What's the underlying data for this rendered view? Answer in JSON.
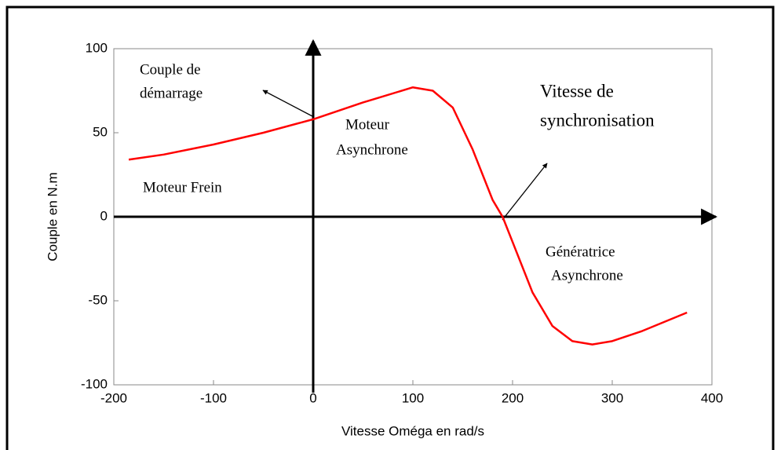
{
  "chart_data": {
    "type": "line",
    "x_label": "Vitesse Oméga en rad/s",
    "y_label": "Couple en N.m",
    "x": [
      -185,
      -150,
      -100,
      -50,
      0,
      50,
      100,
      120,
      140,
      160,
      180,
      190,
      200,
      220,
      240,
      260,
      280,
      300,
      330,
      375
    ],
    "series": [
      {
        "color": "#ff0000",
        "values": [
          34,
          37,
          43,
          50,
          58,
          68,
          77,
          75,
          65,
          40,
          10,
          0,
          -15,
          -45,
          -65,
          -74,
          -76,
          -74,
          -68,
          -57
        ]
      }
    ],
    "xlim": [
      -200,
      400
    ],
    "xticks": [
      -200,
      -100,
      0,
      100,
      200,
      300,
      400
    ],
    "ylim": [
      -100,
      100
    ],
    "yticks": [
      -100,
      -50,
      0,
      50,
      100
    ],
    "annotations": [
      "Couple de",
      "démarrage",
      "Moteur",
      "Asynchrone",
      "Vitesse de",
      "synchronisation",
      "Moteur  Frein",
      "Génératrice",
      "Asynchrone"
    ]
  }
}
